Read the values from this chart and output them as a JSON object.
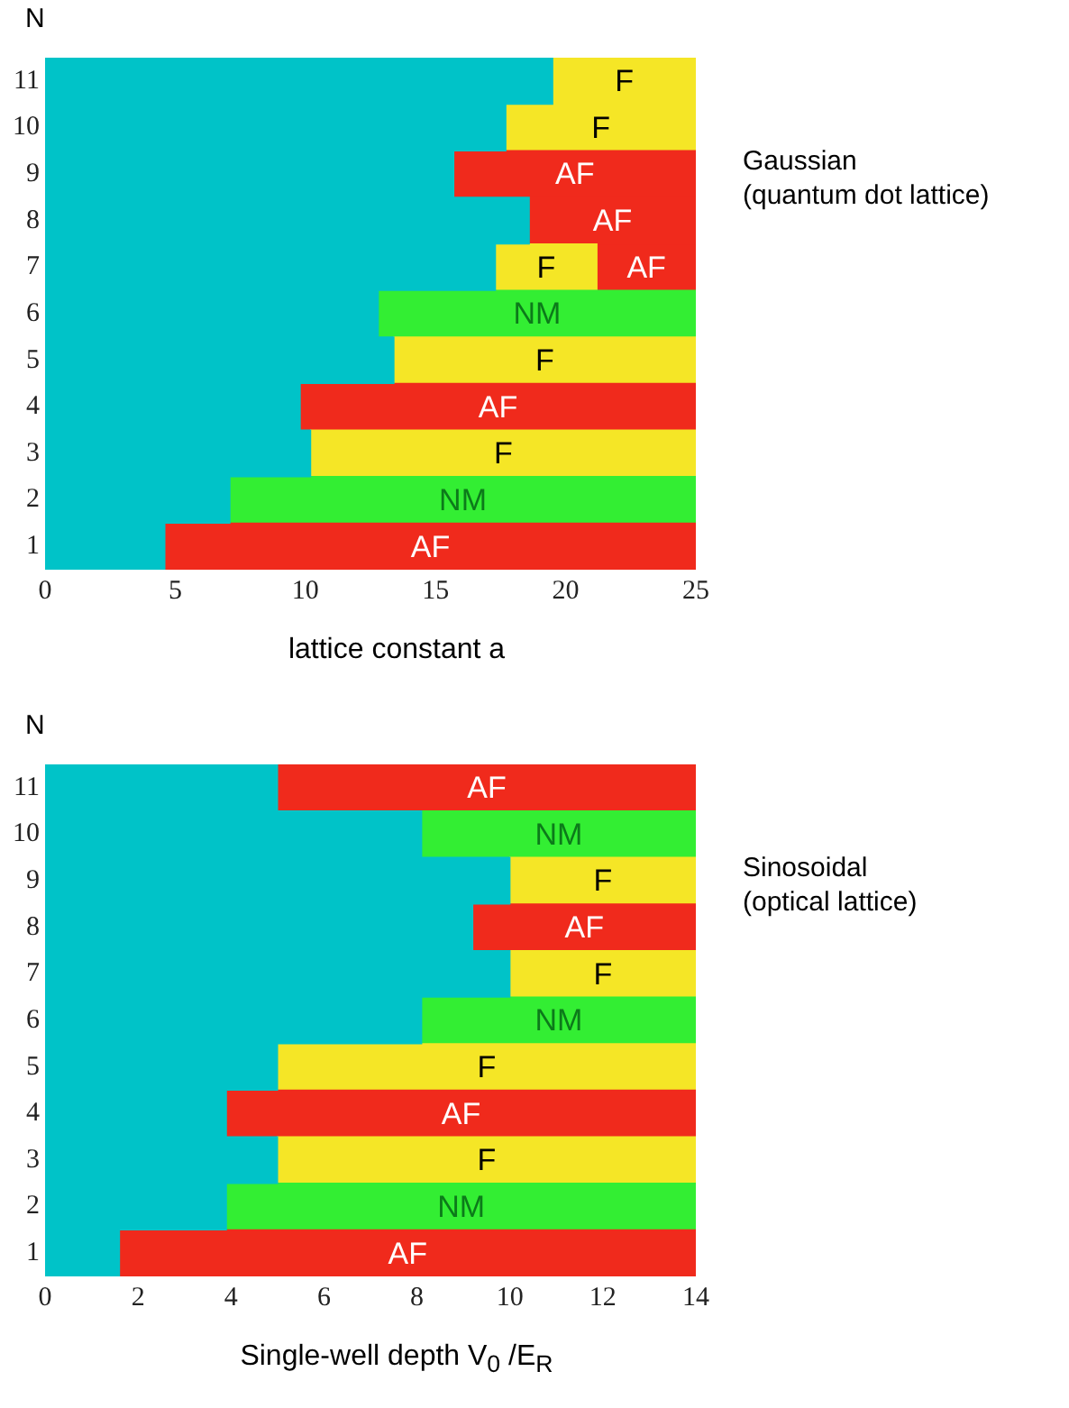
{
  "chart_data": [
    {
      "type": "bar",
      "orientation": "horizontal",
      "stacked": true,
      "xlabel": "lattice constant  a",
      "ylabel": "N",
      "annotations": [
        "Gaussian",
        "(quantum dot lattice)"
      ],
      "categories": [
        "11",
        "10",
        "9",
        "8",
        "7",
        "6",
        "5",
        "4",
        "3",
        "2",
        "1"
      ],
      "series": [
        {
          "color": "#00c3c8",
          "values": [
            19.5,
            17.7,
            15.7,
            18.6,
            17.3,
            12.8,
            13.4,
            9.8,
            10.2,
            7.1,
            4.6
          ]
        },
        {
          "colors": [
            "#f5e626",
            "#f5e626",
            "#f02a1c",
            "#f02a1c",
            "#f5e626",
            "#33ee33",
            "#f5e626",
            "#f02a1c",
            "#f5e626",
            "#33ee33",
            "#f02a1c"
          ],
          "values": [
            5.5,
            7.3,
            9.3,
            6.4,
            3.9,
            12.2,
            11.6,
            15.2,
            14.8,
            17.9,
            20.4
          ],
          "value_labels": [
            "F",
            "F",
            "AF",
            "AF",
            "F",
            "NM",
            "F",
            "AF",
            "F",
            "NM",
            "AF"
          ]
        },
        {
          "color": "#f02a1c",
          "values": [
            null,
            null,
            null,
            null,
            3.8,
            null,
            null,
            null,
            null,
            null,
            null
          ],
          "value_labels": [
            null,
            null,
            null,
            null,
            "AF",
            null,
            null,
            null,
            null,
            null,
            null
          ]
        }
      ],
      "xlim": [
        0,
        25
      ],
      "xticks": [
        0,
        5,
        10,
        15,
        20,
        25
      ],
      "grid": false,
      "legend": false
    },
    {
      "type": "bar",
      "orientation": "horizontal",
      "stacked": true,
      "xlabel": "Single-well depth V$_{0}$ /E$_{R}$",
      "ylabel": "N",
      "annotations": [
        "Sinosoidal",
        "(optical lattice)"
      ],
      "categories": [
        "11",
        "10",
        "9",
        "8",
        "7",
        "6",
        "5",
        "4",
        "3",
        "2",
        "1"
      ],
      "series": [
        {
          "color": "#00c3c8",
          "values": [
            5.0,
            8.1,
            10.0,
            9.2,
            10.0,
            8.1,
            5.0,
            3.9,
            5.0,
            3.9,
            1.6
          ]
        },
        {
          "colors": [
            "#f02a1c",
            "#33ee33",
            "#f5e626",
            "#f02a1c",
            "#f5e626",
            "#33ee33",
            "#f5e626",
            "#f02a1c",
            "#f5e626",
            "#33ee33",
            "#f02a1c"
          ],
          "values": [
            9.0,
            5.9,
            4.0,
            4.8,
            4.0,
            5.9,
            9.0,
            10.1,
            9.0,
            10.1,
            12.4
          ],
          "value_labels": [
            "AF",
            "NM",
            "F",
            "AF",
            "F",
            "NM",
            "F",
            "AF",
            "F",
            "NM",
            "AF"
          ]
        }
      ],
      "xlim": [
        0,
        14
      ],
      "xticks": [
        0,
        2,
        4,
        6,
        8,
        10,
        12,
        14
      ],
      "grid": false,
      "legend": false
    }
  ]
}
